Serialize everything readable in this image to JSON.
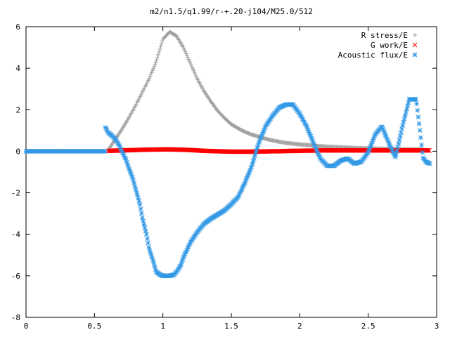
{
  "chart_data": {
    "type": "scatter",
    "title": "m2/n1.5/q1.99/r-+.20-j104/M25.0/512",
    "xlim": [
      0,
      3
    ],
    "ylim": [
      -8,
      6
    ],
    "xticks": [
      0,
      0.5,
      1,
      1.5,
      2,
      2.5,
      3
    ],
    "xtick_labels": [
      "0",
      "0.5",
      "1",
      "1.5",
      "2",
      "2.5",
      "3"
    ],
    "yticks": [
      -8,
      -6,
      -4,
      -2,
      0,
      2,
      4,
      6
    ],
    "ytick_labels": [
      "-8",
      "-6",
      "-4",
      "-2",
      "0",
      "2",
      "4",
      "6"
    ],
    "grid": false,
    "legend_position": "top-right",
    "series": [
      {
        "name": "R stress/E",
        "marker": "plus",
        "color": "#a0a0a0",
        "x": [
          0.6,
          0.65,
          0.7,
          0.75,
          0.8,
          0.85,
          0.9,
          0.95,
          1.0,
          1.05,
          1.1,
          1.15,
          1.2,
          1.25,
          1.3,
          1.35,
          1.4,
          1.45,
          1.5,
          1.55,
          1.6,
          1.65,
          1.7,
          1.75,
          1.8,
          1.85,
          1.9,
          2.0,
          2.1,
          2.2,
          2.3,
          2.4,
          2.5,
          2.6,
          2.7,
          2.8,
          2.9
        ],
        "y": [
          0.05,
          0.55,
          1.05,
          1.6,
          2.2,
          2.85,
          3.5,
          4.3,
          5.4,
          5.75,
          5.55,
          5.0,
          4.25,
          3.5,
          2.9,
          2.4,
          1.95,
          1.6,
          1.3,
          1.1,
          0.93,
          0.8,
          0.7,
          0.6,
          0.52,
          0.46,
          0.4,
          0.33,
          0.27,
          0.22,
          0.19,
          0.16,
          0.14,
          0.12,
          0.1,
          0.09,
          0.08
        ]
      },
      {
        "name": "G work/E",
        "marker": "cross",
        "color": "#ff0000",
        "x": [
          0.6,
          0.65,
          0.7,
          0.75,
          0.8,
          0.85,
          0.9,
          0.95,
          1.0,
          1.05,
          1.1,
          1.15,
          1.2,
          1.25,
          1.3,
          1.35,
          1.4,
          1.45,
          1.5,
          1.55,
          1.6,
          1.65,
          1.7,
          1.75,
          1.8,
          1.85,
          1.9,
          1.95,
          2.0,
          2.05,
          2.1,
          2.15,
          2.2,
          2.25,
          2.3,
          2.35,
          2.4,
          2.45,
          2.5,
          2.55,
          2.6,
          2.65,
          2.7,
          2.75,
          2.8,
          2.85,
          2.9,
          2.95
        ],
        "y": [
          0.02,
          0.03,
          0.04,
          0.05,
          0.06,
          0.07,
          0.08,
          0.08,
          0.09,
          0.09,
          0.08,
          0.07,
          0.06,
          0.04,
          0.02,
          0.01,
          0.0,
          -0.01,
          -0.02,
          -0.02,
          -0.02,
          -0.02,
          -0.01,
          -0.01,
          0.0,
          0.0,
          0.01,
          0.02,
          0.02,
          0.03,
          0.03,
          0.04,
          0.04,
          0.04,
          0.04,
          0.04,
          0.04,
          0.04,
          0.04,
          0.04,
          0.04,
          0.04,
          0.04,
          0.04,
          0.04,
          0.04,
          0.04,
          0.04
        ]
      },
      {
        "name": "Acoustic flux/E",
        "marker": "star",
        "color": "#3399e6",
        "x": [
          0.58,
          0.6,
          0.62,
          0.65,
          0.68,
          0.7,
          0.73,
          0.75,
          0.78,
          0.8,
          0.83,
          0.85,
          0.88,
          0.9,
          0.93,
          0.95,
          0.98,
          1.0,
          1.03,
          1.05,
          1.08,
          1.1,
          1.13,
          1.15,
          1.18,
          1.2,
          1.25,
          1.3,
          1.35,
          1.4,
          1.45,
          1.5,
          1.55,
          1.6,
          1.65,
          1.7,
          1.75,
          1.8,
          1.85,
          1.9,
          1.95,
          2.0,
          2.05,
          2.1,
          2.15,
          2.2,
          2.25,
          2.3,
          2.35,
          2.4,
          2.45,
          2.5,
          2.55,
          2.6,
          2.65,
          2.7,
          2.75,
          2.8,
          2.85,
          2.88,
          2.9,
          2.92,
          2.95
        ],
        "y": [
          1.15,
          0.9,
          0.8,
          0.6,
          0.3,
          0.0,
          -0.4,
          -0.8,
          -1.3,
          -1.8,
          -2.5,
          -3.2,
          -4.0,
          -4.7,
          -5.3,
          -5.8,
          -5.95,
          -6.0,
          -6.0,
          -6.0,
          -5.95,
          -5.8,
          -5.5,
          -5.1,
          -4.7,
          -4.4,
          -3.9,
          -3.5,
          -3.25,
          -3.05,
          -2.85,
          -2.55,
          -2.2,
          -1.5,
          -0.7,
          0.4,
          1.2,
          1.7,
          2.1,
          2.25,
          2.25,
          1.8,
          1.2,
          0.4,
          -0.35,
          -0.7,
          -0.7,
          -0.45,
          -0.35,
          -0.6,
          -0.5,
          -0.05,
          0.8,
          1.2,
          0.4,
          -0.3,
          1.2,
          2.5,
          2.5,
          0.9,
          -0.3,
          -0.5,
          -0.6
        ]
      }
    ]
  }
}
